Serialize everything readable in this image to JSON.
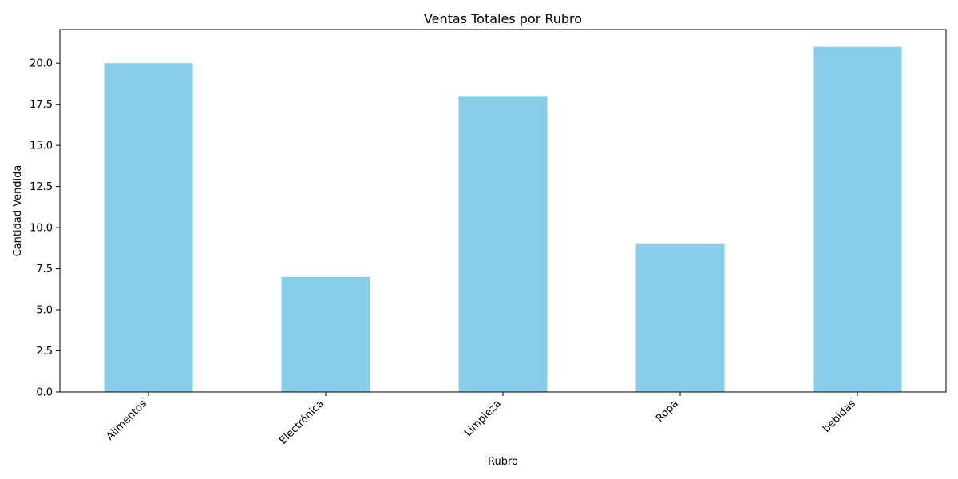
{
  "chart_data": {
    "type": "bar",
    "title": "Ventas Totales por Rubro",
    "xlabel": "Rubro",
    "ylabel": "Cantidad Vendida",
    "categories": [
      "Alimentos",
      "Electrónica",
      "Limpieza",
      "Ropa",
      "bebidas"
    ],
    "values": [
      20,
      7,
      18,
      9,
      21
    ],
    "ylim": [
      0,
      22.05
    ],
    "yticks": [
      0.0,
      2.5,
      5.0,
      7.5,
      10.0,
      12.5,
      15.0,
      17.5,
      20.0
    ],
    "ytick_labels": [
      "0.0",
      "2.5",
      "5.0",
      "7.5",
      "10.0",
      "12.5",
      "15.0",
      "17.5",
      "20.0"
    ],
    "grid": false,
    "legend": "none",
    "bar_color": "#87ceeb",
    "axis_color": "#000000"
  }
}
